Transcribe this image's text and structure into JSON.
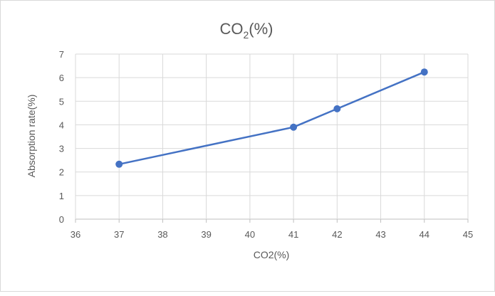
{
  "chart_data": {
    "type": "line",
    "title": "CO",
    "title_subscript": "2",
    "title_suffix": "(%)",
    "xlabel": "CO2(%)",
    "ylabel": "Absorption rate(%)",
    "xlim": [
      36,
      45
    ],
    "ylim": [
      0,
      7
    ],
    "x_ticks": [
      "36",
      "37",
      "38",
      "39",
      "40",
      "41",
      "42",
      "43",
      "44",
      "45"
    ],
    "y_ticks": [
      "0",
      "1",
      "2",
      "3",
      "4",
      "5",
      "6",
      "7"
    ],
    "grid": true,
    "legend": "none",
    "series_color": "#4472c4",
    "series": [
      {
        "x": [
          37,
          41,
          42,
          44
        ],
        "y": [
          2.33,
          3.9,
          4.68,
          6.24
        ]
      }
    ]
  }
}
